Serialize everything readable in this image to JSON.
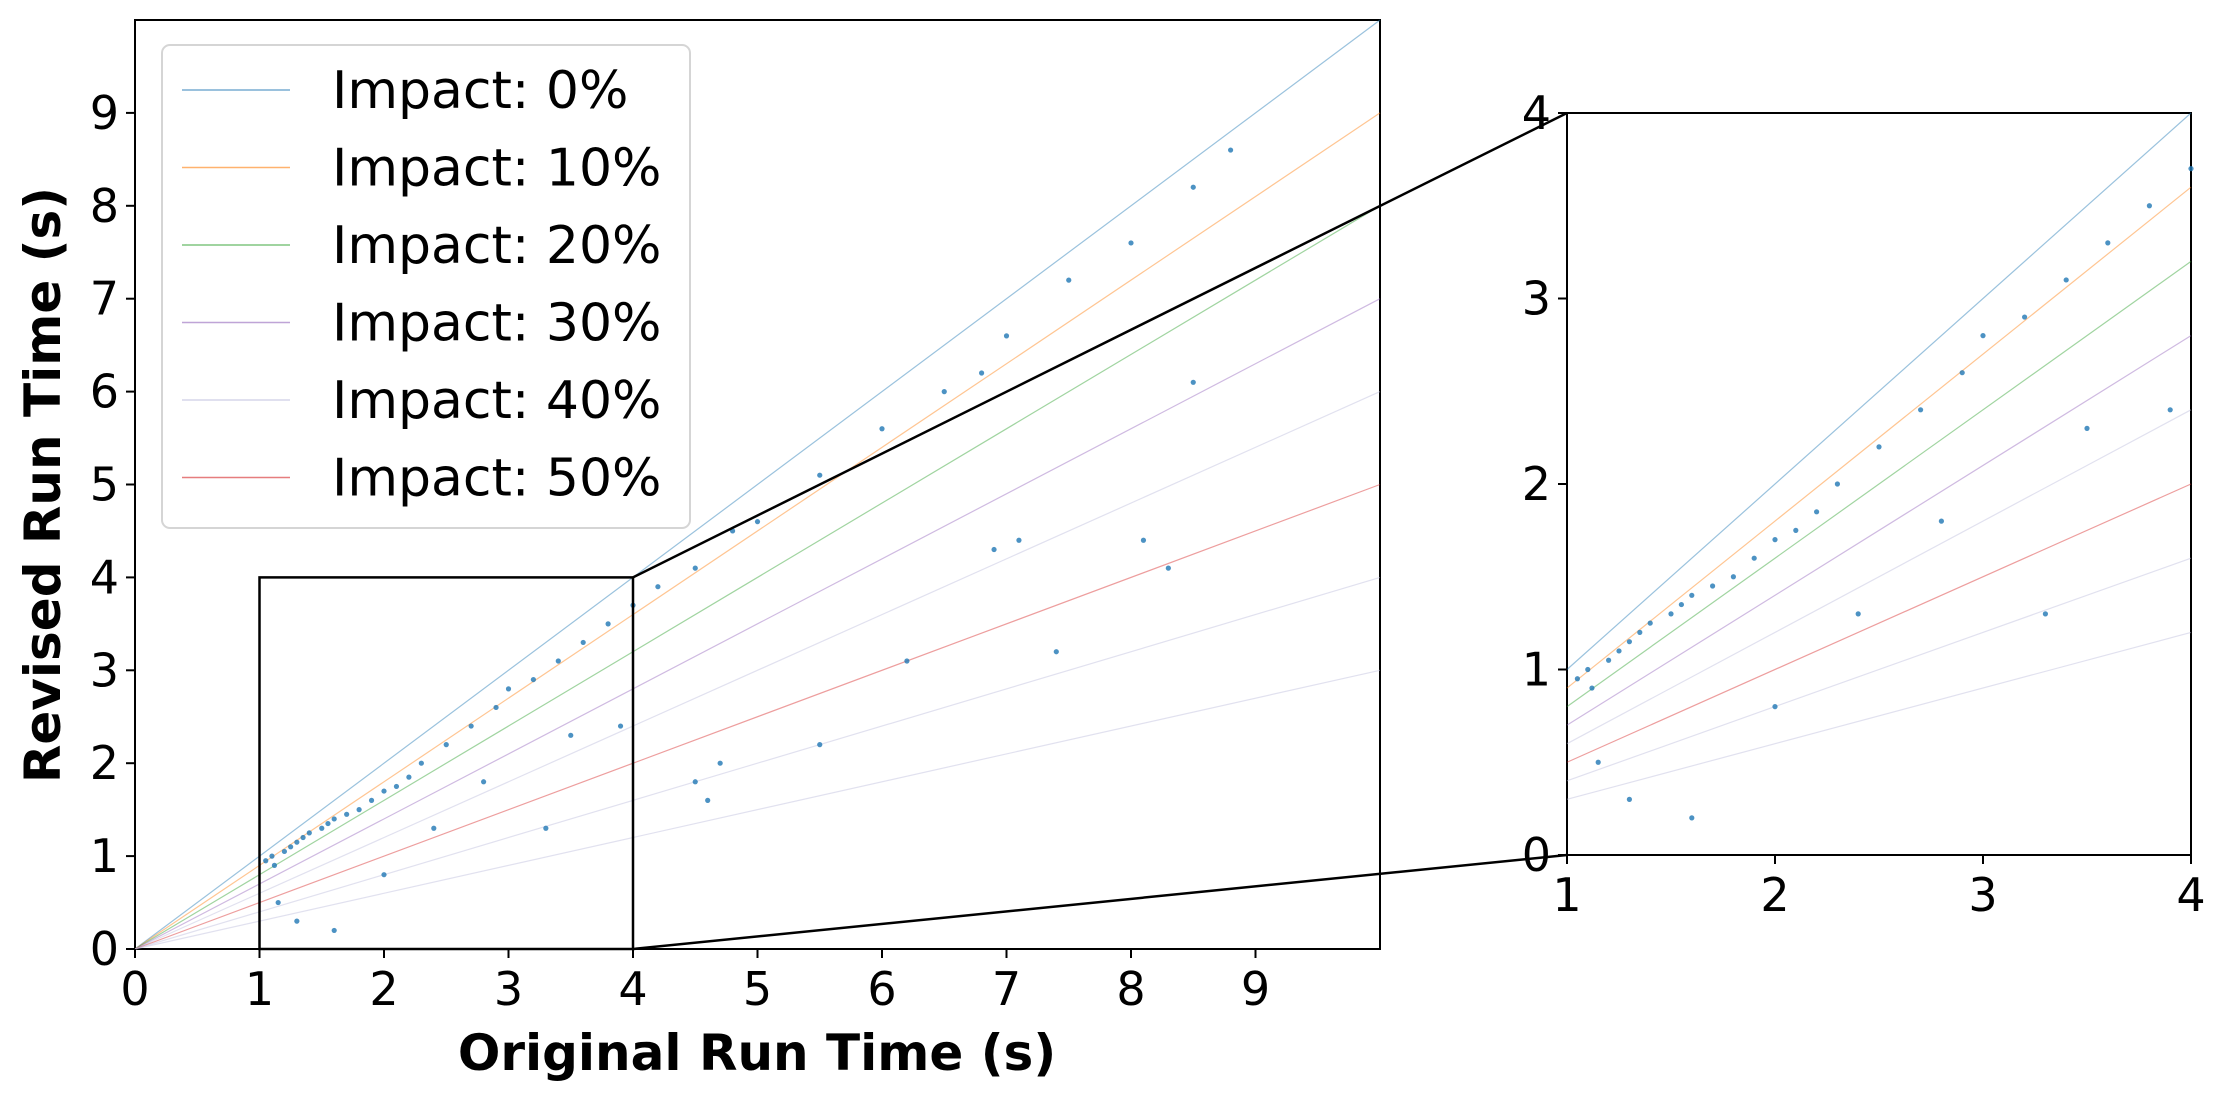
{
  "chart_data": [
    {
      "type": "scatter",
      "xlabel": "Original Run Time (s)",
      "ylabel": "Revised Run Time (s)",
      "xlim": [
        0,
        10
      ],
      "ylim": [
        0,
        10
      ],
      "xticks": [
        "0",
        "1",
        "2",
        "3",
        "4",
        "5",
        "6",
        "7",
        "8",
        "9"
      ],
      "yticks": [
        "0",
        "1",
        "2",
        "3",
        "4",
        "5",
        "6",
        "7",
        "8",
        "9"
      ],
      "grid": false,
      "legend_position": "top-left",
      "point_color": "#1f77b4",
      "reference_lines": [
        {
          "name": "Impact: 0%",
          "impact": 0.0,
          "color": "#1f77b4"
        },
        {
          "name": "Impact: 10%",
          "impact": 0.1,
          "color": "#ff7f0e"
        },
        {
          "name": "Impact: 20%",
          "impact": 0.2,
          "color": "#2ca02c"
        },
        {
          "name": "Impact: 30%",
          "impact": 0.3,
          "color": "#9467bd"
        },
        {
          "name": "Impact: 40%",
          "impact": 0.4,
          "color": "#bcbcdc"
        },
        {
          "name": "Impact: 50%",
          "impact": 0.5,
          "color": "#d62728"
        }
      ],
      "extra_lines": [
        0.6,
        0.7
      ],
      "zoom_region": {
        "xlim": [
          1,
          4
        ],
        "ylim": [
          0,
          4
        ]
      },
      "points": [
        [
          1.05,
          0.95
        ],
        [
          1.1,
          1.0
        ],
        [
          1.12,
          0.9
        ],
        [
          1.2,
          1.05
        ],
        [
          1.25,
          1.1
        ],
        [
          1.3,
          1.15
        ],
        [
          1.35,
          1.2
        ],
        [
          1.4,
          1.25
        ],
        [
          1.5,
          1.3
        ],
        [
          1.55,
          1.35
        ],
        [
          1.6,
          1.4
        ],
        [
          1.7,
          1.45
        ],
        [
          1.8,
          1.5
        ],
        [
          1.9,
          1.6
        ],
        [
          2.0,
          1.7
        ],
        [
          2.1,
          1.75
        ],
        [
          2.2,
          1.85
        ],
        [
          2.3,
          2.0
        ],
        [
          2.5,
          2.2
        ],
        [
          2.7,
          2.4
        ],
        [
          2.9,
          2.6
        ],
        [
          3.0,
          2.8
        ],
        [
          3.2,
          2.9
        ],
        [
          3.4,
          3.1
        ],
        [
          3.6,
          3.3
        ],
        [
          3.8,
          3.5
        ],
        [
          4.0,
          3.7
        ],
        [
          4.2,
          3.9
        ],
        [
          4.5,
          4.1
        ],
        [
          4.8,
          4.5
        ],
        [
          5.0,
          4.6
        ],
        [
          5.5,
          5.1
        ],
        [
          6.0,
          5.6
        ],
        [
          6.5,
          6.0
        ],
        [
          6.8,
          6.2
        ],
        [
          7.0,
          6.6
        ],
        [
          7.5,
          7.2
        ],
        [
          8.0,
          7.6
        ],
        [
          8.5,
          8.2
        ],
        [
          8.8,
          8.6
        ],
        [
          1.15,
          0.5
        ],
        [
          1.3,
          0.3
        ],
        [
          1.6,
          0.2
        ],
        [
          2.0,
          0.8
        ],
        [
          2.4,
          1.3
        ],
        [
          2.8,
          1.8
        ],
        [
          3.3,
          1.3
        ],
        [
          3.5,
          2.3
        ],
        [
          3.9,
          2.4
        ],
        [
          4.5,
          1.8
        ],
        [
          4.6,
          1.6
        ],
        [
          4.7,
          2.0
        ],
        [
          5.5,
          2.2
        ],
        [
          6.2,
          3.1
        ],
        [
          6.9,
          4.3
        ],
        [
          7.1,
          4.4
        ],
        [
          7.4,
          3.2
        ],
        [
          8.1,
          4.4
        ],
        [
          8.3,
          4.1
        ],
        [
          8.5,
          6.1
        ]
      ]
    }
  ]
}
